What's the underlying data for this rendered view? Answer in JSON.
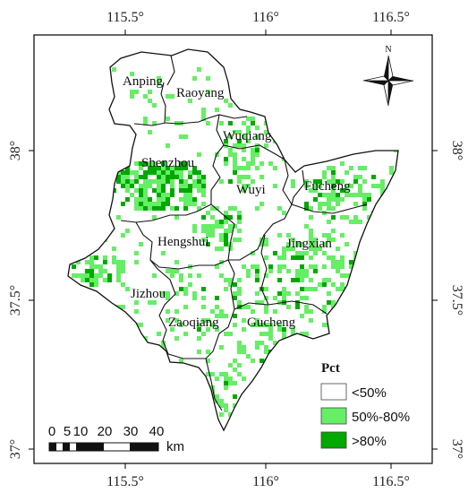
{
  "map": {
    "lon_ticks": [
      "115.5°",
      "116°",
      "116.5°"
    ],
    "lat_ticks": [
      "38°",
      "37.5°",
      "37°"
    ],
    "north": "N",
    "counties": [
      "Anping",
      "Raoyang",
      "Wuqiang",
      "Shenzhou",
      "Wuyi",
      "Fucheng",
      "Hengshui",
      "Jingxian",
      "Jizhou",
      "Zaoqiang",
      "Gucheng"
    ],
    "legend": {
      "title": "Pct",
      "items": [
        {
          "label": "<50%",
          "color": "#ffffff"
        },
        {
          "label": "50%-80%",
          "color": "#66ee66"
        },
        {
          "label": ">80%",
          "color": "#00a800"
        }
      ]
    },
    "scale": {
      "labels": [
        "0",
        "5",
        "10",
        "20",
        "30",
        "40"
      ],
      "unit": "km"
    },
    "colors": {
      "light_green": "#66ee66",
      "dark_green": "#00a800",
      "boundary": "#111111"
    }
  }
}
